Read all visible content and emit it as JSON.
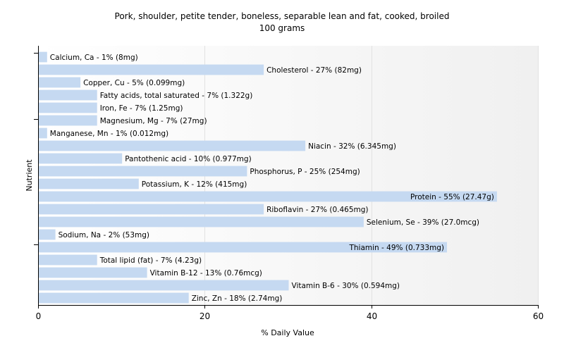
{
  "chart_data": {
    "type": "bar",
    "orientation": "horizontal",
    "title": "Pork, shoulder, petite tender, boneless, separable lean and fat, cooked, broiled",
    "subtitle": "100 grams",
    "xlabel": "% Daily Value",
    "ylabel": "Nutrient",
    "xlim": [
      0,
      60
    ],
    "xticks": [
      0,
      20,
      40,
      60
    ],
    "grid": true,
    "bar_color": "#c5d9f1",
    "categories": [
      "Calcium, Ca",
      "Cholesterol",
      "Copper, Cu",
      "Fatty acids, total saturated",
      "Iron, Fe",
      "Magnesium, Mg",
      "Manganese, Mn",
      "Niacin",
      "Pantothenic acid",
      "Phosphorus, P",
      "Potassium, K",
      "Protein",
      "Riboflavin",
      "Selenium, Se",
      "Sodium, Na",
      "Thiamin",
      "Total lipid (fat)",
      "Vitamin B-12",
      "Vitamin B-6",
      "Zinc, Zn"
    ],
    "values": [
      1,
      27,
      5,
      7,
      7,
      7,
      1,
      32,
      10,
      25,
      12,
      55,
      27,
      39,
      2,
      49,
      7,
      13,
      30,
      18
    ],
    "labels": [
      "Calcium, Ca - 1% (8mg)",
      "Cholesterol - 27% (82mg)",
      "Copper, Cu - 5% (0.099mg)",
      "Fatty acids, total saturated - 7% (1.322g)",
      "Iron, Fe - 7% (1.25mg)",
      "Magnesium, Mg - 7% (27mg)",
      "Manganese, Mn - 1% (0.012mg)",
      "Niacin - 32% (6.345mg)",
      "Pantothenic acid - 10% (0.977mg)",
      "Phosphorus, P - 25% (254mg)",
      "Potassium, K - 12% (415mg)",
      "Protein - 55% (27.47g)",
      "Riboflavin - 27% (0.465mg)",
      "Selenium, Se - 39% (27.0mcg)",
      "Sodium, Na - 2% (53mg)",
      "Thiamin - 49% (0.733mg)",
      "Total lipid (fat) - 7% (4.23g)",
      "Vitamin B-12 - 13% (0.76mcg)",
      "Vitamin B-6 - 30% (0.594mg)",
      "Zinc, Zn - 18% (2.74mg)"
    ]
  }
}
